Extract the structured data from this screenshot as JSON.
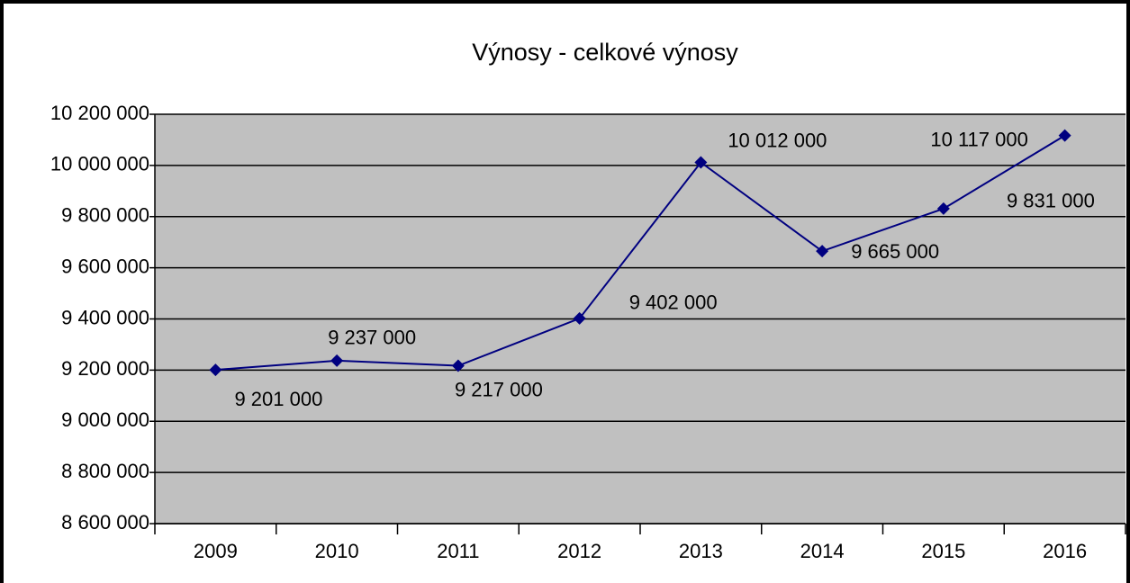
{
  "chart_data": {
    "type": "line",
    "title": "Výnosy - celkové výnosy",
    "categories": [
      "2009",
      "2010",
      "2011",
      "2012",
      "2013",
      "2014",
      "2015",
      "2016"
    ],
    "series": [
      {
        "color": "#000080",
        "values": [
          9201000,
          9237000,
          9217000,
          9402000,
          10012000,
          9665000,
          9831000,
          10117000
        ],
        "value_labels": [
          "9 201 000",
          "9 237 000",
          "9 217 000",
          "9 402 000",
          "10 012 000",
          "9 665 000",
          "9 831 000",
          "10 117 000"
        ]
      }
    ],
    "ylim": [
      8600000,
      10200000
    ],
    "yticks": [
      {
        "value": 8600000,
        "label": "8 600 000"
      },
      {
        "value": 8800000,
        "label": "8 800 000"
      },
      {
        "value": 9000000,
        "label": "9 000 000"
      },
      {
        "value": 9200000,
        "label": "9 200 000"
      },
      {
        "value": 9400000,
        "label": "9 400 000"
      },
      {
        "value": 9600000,
        "label": "9 600 000"
      },
      {
        "value": 9800000,
        "label": "9 800 000"
      },
      {
        "value": 10000000,
        "label": "10 000 000"
      },
      {
        "value": 10200000,
        "label": "10 200 000"
      }
    ],
    "grid": true,
    "plot_background": "#c0c0c0"
  }
}
